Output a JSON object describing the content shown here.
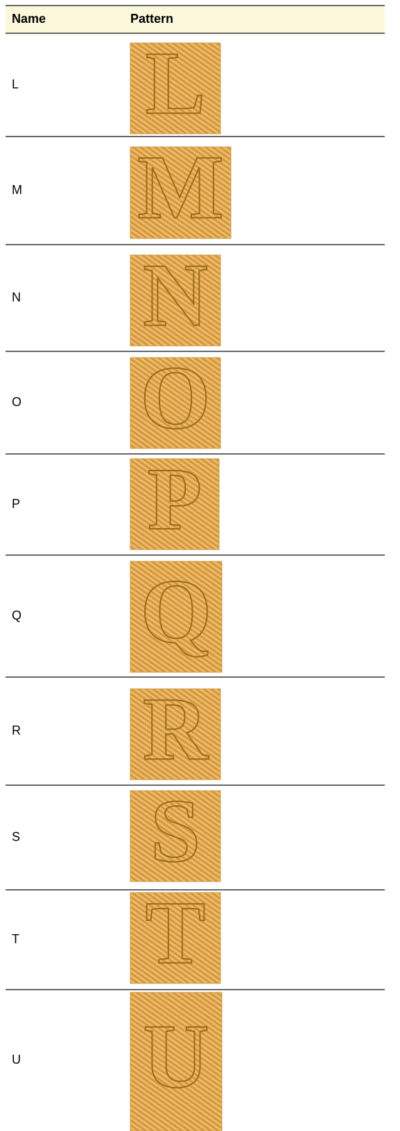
{
  "table": {
    "columns": [
      "Name",
      "Pattern"
    ],
    "rows": [
      [
        "L"
      ],
      [
        "M"
      ],
      [
        "N"
      ],
      [
        "O"
      ],
      [
        "P"
      ],
      [
        "Q"
      ],
      [
        "R"
      ],
      [
        "S"
      ],
      [
        "T"
      ],
      [
        "U"
      ]
    ]
  }
}
